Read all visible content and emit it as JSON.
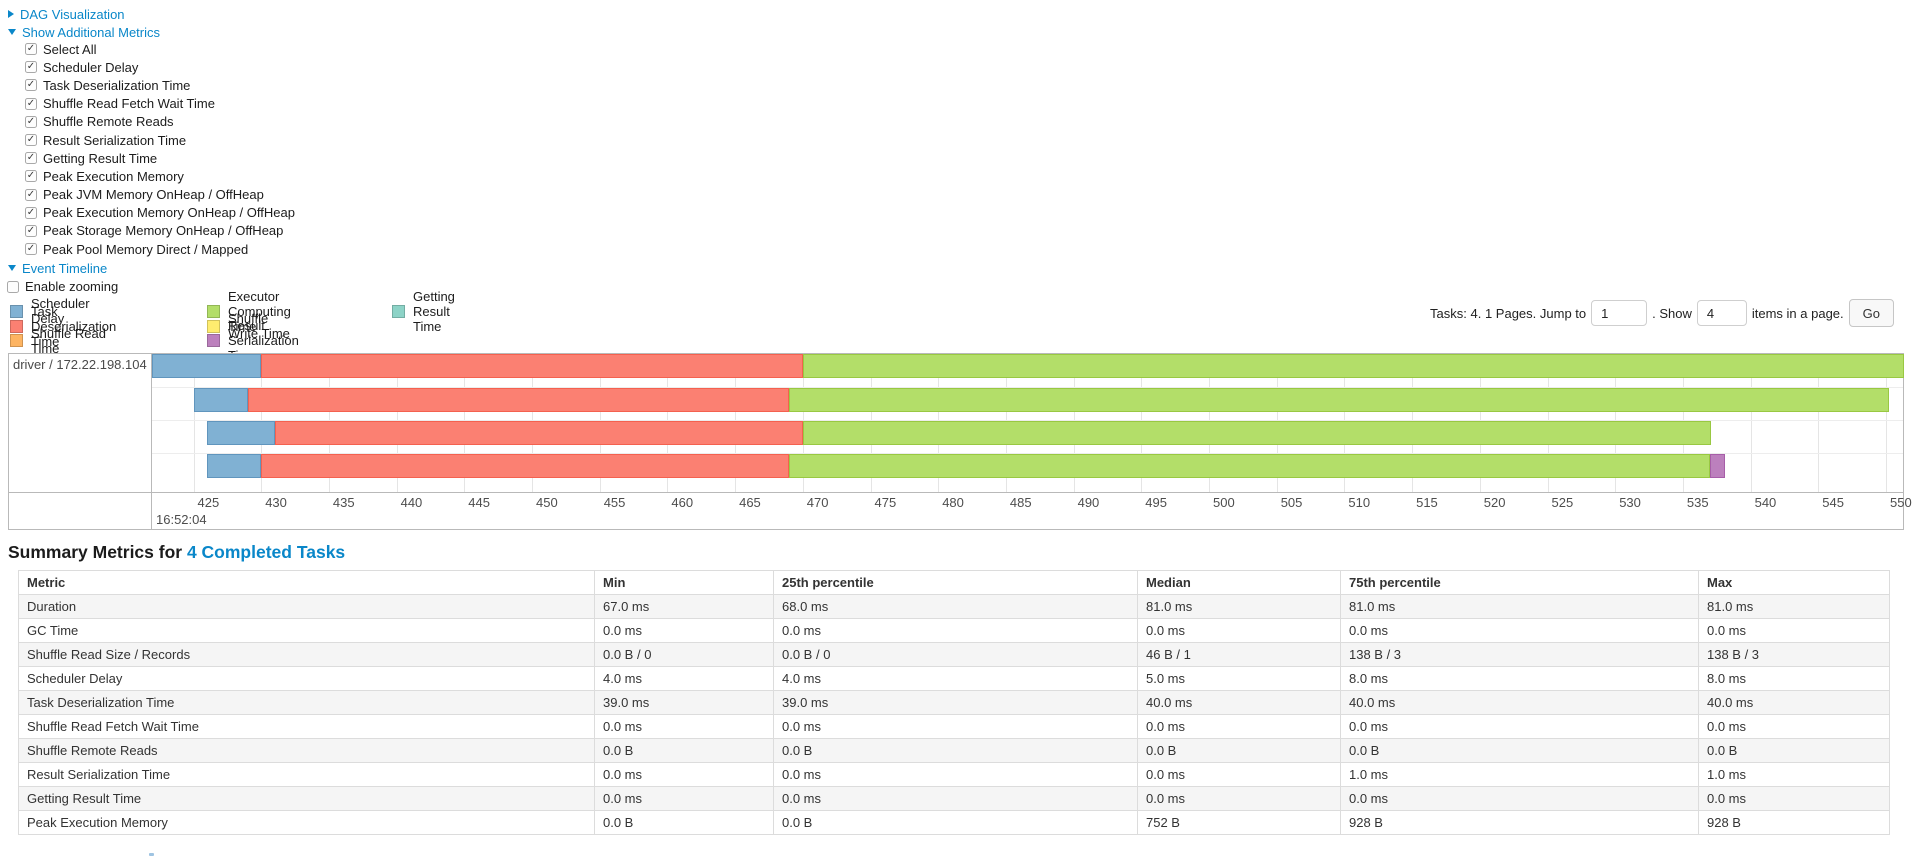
{
  "controls": {
    "dag_section_label": "DAG Visualization",
    "metrics_section_label": "Show Additional Metrics",
    "metric_checkboxes": [
      {
        "label": "Select All",
        "checked": true
      },
      {
        "label": "Scheduler Delay",
        "checked": true
      },
      {
        "label": "Task Deserialization Time",
        "checked": true
      },
      {
        "label": "Shuffle Read Fetch Wait Time",
        "checked": true
      },
      {
        "label": "Shuffle Remote Reads",
        "checked": true
      },
      {
        "label": "Result Serialization Time",
        "checked": true
      },
      {
        "label": "Getting Result Time",
        "checked": true
      },
      {
        "label": "Peak Execution Memory",
        "checked": true
      },
      {
        "label": "Peak JVM Memory OnHeap / OffHeap",
        "checked": true
      },
      {
        "label": "Peak Execution Memory OnHeap / OffHeap",
        "checked": true
      },
      {
        "label": "Peak Storage Memory OnHeap / OffHeap",
        "checked": true
      },
      {
        "label": "Peak Pool Memory Direct / Mapped",
        "checked": true
      }
    ],
    "timeline_section_label": "Event Timeline",
    "enable_zooming": {
      "label": "Enable zooming",
      "checked": false
    }
  },
  "legend": {
    "columns": [
      [
        {
          "label": "Scheduler Delay",
          "color": "#80B1D3"
        },
        {
          "label": "Task Deserialization Time",
          "color": "#FB8072"
        },
        {
          "label": "Shuffle Read Time",
          "color": "#FDB462"
        }
      ],
      [
        {
          "label": "Executor Computing Time",
          "color": "#B3DE69"
        },
        {
          "label": "Shuffle Write Time",
          "color": "#FFED6F"
        },
        {
          "label": "Result Serialization Time",
          "color": "#BC80BD"
        }
      ],
      [
        {
          "label": "Getting Result Time",
          "color": "#8DD3C7"
        }
      ]
    ]
  },
  "pagination": {
    "info": "Tasks: 4. 1 Pages. Jump to",
    "jump_value": "1",
    "show_label": ". Show",
    "page_size_value": "4",
    "suffix": "items in a page.",
    "go_label": "Go"
  },
  "chart_data": {
    "type": "timeline",
    "group_label": "driver / 172.22.198.104",
    "x_axis": {
      "major_label": "16:52:04",
      "range": [
        421.9,
        551.3
      ],
      "ticks_from": 425,
      "ticks_to": 550,
      "tick_step": 5,
      "unit": "ms"
    },
    "series_colors": {
      "Scheduler Delay": {
        "fill": "#80B1D3",
        "border": "#6095BD"
      },
      "Task Deserialization Time": {
        "fill": "#FB8072",
        "border": "#F4614F"
      },
      "Shuffle Read Time": {
        "fill": "#FDB462",
        "border": "#F1983B"
      },
      "Executor Computing Time": {
        "fill": "#B3DE69",
        "border": "#99C842"
      },
      "Shuffle Write Time": {
        "fill": "#FFED6F",
        "border": "#E8D44D"
      },
      "Result Serialization Time": {
        "fill": "#BC80BD",
        "border": "#A75EA8"
      },
      "Getting Result Time": {
        "fill": "#8DD3C7",
        "border": "#69BBAC"
      }
    },
    "tasks": [
      {
        "segments": [
          {
            "type": "Scheduler Delay",
            "start": 421.9,
            "end": 430.0
          },
          {
            "type": "Task Deserialization Time",
            "start": 430.0,
            "end": 470.0
          },
          {
            "type": "Executor Computing Time",
            "start": 470.0,
            "end": 551.3
          }
        ]
      },
      {
        "segments": [
          {
            "type": "Scheduler Delay",
            "start": 425.0,
            "end": 429.0
          },
          {
            "type": "Task Deserialization Time",
            "start": 429.0,
            "end": 469.0
          },
          {
            "type": "Executor Computing Time",
            "start": 469.0,
            "end": 550.2
          }
        ]
      },
      {
        "segments": [
          {
            "type": "Scheduler Delay",
            "start": 426.0,
            "end": 431.0
          },
          {
            "type": "Task Deserialization Time",
            "start": 431.0,
            "end": 470.0
          },
          {
            "type": "Executor Computing Time",
            "start": 470.0,
            "end": 537.1
          }
        ]
      },
      {
        "segments": [
          {
            "type": "Scheduler Delay",
            "start": 426.0,
            "end": 430.0
          },
          {
            "type": "Task Deserialization Time",
            "start": 430.0,
            "end": 469.0
          },
          {
            "type": "Executor Computing Time",
            "start": 469.0,
            "end": 537.0
          },
          {
            "type": "Result Serialization Time",
            "start": 537.0,
            "end": 538.1
          }
        ]
      }
    ]
  },
  "summary": {
    "title_prefix": "Summary Metrics for ",
    "title_link": "4 Completed Tasks",
    "table": {
      "headers": [
        "Metric",
        "Min",
        "25th percentile",
        "Median",
        "75th percentile",
        "Max"
      ],
      "rows": [
        [
          "Duration",
          "67.0 ms",
          "68.0 ms",
          "81.0 ms",
          "81.0 ms",
          "81.0 ms"
        ],
        [
          "GC Time",
          "0.0 ms",
          "0.0 ms",
          "0.0 ms",
          "0.0 ms",
          "0.0 ms"
        ],
        [
          "Shuffle Read Size / Records",
          "0.0 B / 0",
          "0.0 B / 0",
          "46 B / 1",
          "138 B / 3",
          "138 B / 3"
        ],
        [
          "Scheduler Delay",
          "4.0 ms",
          "4.0 ms",
          "5.0 ms",
          "8.0 ms",
          "8.0 ms"
        ],
        [
          "Task Deserialization Time",
          "39.0 ms",
          "39.0 ms",
          "40.0 ms",
          "40.0 ms",
          "40.0 ms"
        ],
        [
          "Shuffle Read Fetch Wait Time",
          "0.0 ms",
          "0.0 ms",
          "0.0 ms",
          "0.0 ms",
          "0.0 ms"
        ],
        [
          "Shuffle Remote Reads",
          "0.0 B",
          "0.0 B",
          "0.0 B",
          "0.0 B",
          "0.0 B"
        ],
        [
          "Result Serialization Time",
          "0.0 ms",
          "0.0 ms",
          "0.0 ms",
          "1.0 ms",
          "1.0 ms"
        ],
        [
          "Getting Result Time",
          "0.0 ms",
          "0.0 ms",
          "0.0 ms",
          "0.0 ms",
          "0.0 ms"
        ],
        [
          "Peak Execution Memory",
          "0.0 B",
          "0.0 B",
          "752 B",
          "928 B",
          "928 B"
        ]
      ]
    }
  }
}
